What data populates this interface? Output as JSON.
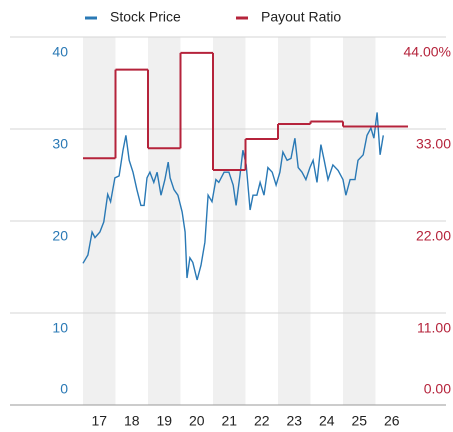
{
  "chart_data": {
    "type": "line",
    "xlim": [
      16.5,
      26.5
    ],
    "xticks": [
      17,
      18,
      19,
      20,
      21,
      22,
      23,
      24,
      25,
      26
    ],
    "ylim": [
      0,
      40
    ],
    "yticks": [
      0,
      10,
      20,
      30,
      40
    ],
    "y2lim": [
      0,
      44
    ],
    "y2ticks": [
      {
        "value": 0,
        "label": "0.00"
      },
      {
        "value": 11,
        "label": "11.00"
      },
      {
        "value": 22,
        "label": "22.00"
      },
      {
        "value": 33,
        "label": "33.00"
      },
      {
        "value": 44,
        "label": "44.00%"
      }
    ],
    "grid": true,
    "shaded_bands": true,
    "legend": "top",
    "series": [
      {
        "name": "Stock Price",
        "color": "#2a79b5",
        "x": [
          16.5,
          16.65,
          16.78,
          16.87,
          17.02,
          17.14,
          17.26,
          17.35,
          17.48,
          17.61,
          17.73,
          17.82,
          17.92,
          18.04,
          18.16,
          18.28,
          18.38,
          18.47,
          18.56,
          18.68,
          18.78,
          18.9,
          19.02,
          19.12,
          19.18,
          19.3,
          19.42,
          19.55,
          19.64,
          19.7,
          19.79,
          19.88,
          20.01,
          20.13,
          20.25,
          20.35,
          20.47,
          20.59,
          20.68,
          20.84,
          20.99,
          21.12,
          21.21,
          21.33,
          21.42,
          21.52,
          21.64,
          21.73,
          21.85,
          21.95,
          22.07,
          22.19,
          22.32,
          22.44,
          22.56,
          22.65,
          22.78,
          22.9,
          23.02,
          23.12,
          23.24,
          23.36,
          23.48,
          23.58,
          23.7,
          23.82,
          23.92,
          24.04,
          24.19,
          24.35,
          24.5,
          24.59,
          24.72,
          24.87,
          24.96,
          25.12,
          25.24,
          25.36,
          25.45,
          25.55,
          25.64,
          25.74
        ],
        "values": [
          15.4,
          16.3,
          18.8,
          18.2,
          18.8,
          19.9,
          22.9,
          22.1,
          24.7,
          24.9,
          27.7,
          29.3,
          26.6,
          25.3,
          23.4,
          21.7,
          21.7,
          24.7,
          25.3,
          24.2,
          25.3,
          22.8,
          24.5,
          26.4,
          24.7,
          23.4,
          22.8,
          21.0,
          18.8,
          13.8,
          16.0,
          15.5,
          13.6,
          15.2,
          17.7,
          22.8,
          22.1,
          24.5,
          24.2,
          25.3,
          25.3,
          23.9,
          21.7,
          25.0,
          27.7,
          26.1,
          21.2,
          22.8,
          22.8,
          24.2,
          22.8,
          25.8,
          25.3,
          23.9,
          25.3,
          27.5,
          26.6,
          26.8,
          29.0,
          25.8,
          25.3,
          24.5,
          25.8,
          26.6,
          24.2,
          28.3,
          26.6,
          24.5,
          26.1,
          25.5,
          24.5,
          22.8,
          24.5,
          24.5,
          26.6,
          27.2,
          29.3,
          30.1,
          29.0,
          31.8,
          27.2,
          29.3
        ]
      },
      {
        "name": "Payout Ratio",
        "color": "#b5233b",
        "axis": "y2",
        "step": true,
        "x": [
          16.5,
          17.5,
          18.5,
          19.5,
          20.5,
          21.5,
          22.5,
          23.5,
          24.5,
          25.5
        ],
        "values": [
          29.5,
          40.1,
          30.7,
          42.1,
          28.1,
          31.8,
          33.6,
          33.9,
          33.3,
          33.3
        ]
      }
    ]
  }
}
